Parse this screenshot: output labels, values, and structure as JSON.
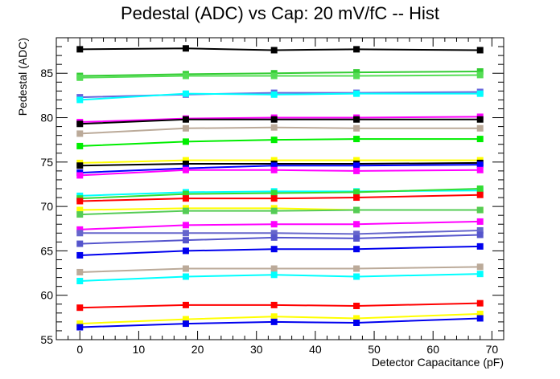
{
  "chart_data": {
    "type": "line",
    "title": "Pedestal (ADC) vs Cap: 20 mV/fC -- Hist",
    "xlabel": "Detector Capacitance (pF)",
    "ylabel": "Pedestal (ADC)",
    "xlim": [
      -4,
      72
    ],
    "ylim": [
      55,
      89
    ],
    "x_ticks": [
      0,
      10,
      20,
      30,
      40,
      50,
      60,
      70
    ],
    "y_ticks": [
      55,
      60,
      65,
      70,
      75,
      80,
      85
    ],
    "grid": false,
    "legend": "none",
    "x": [
      0,
      18,
      33,
      47,
      68
    ],
    "series": [
      {
        "color": "#000000",
        "marker": "square",
        "values": [
          87.7,
          87.8,
          87.6,
          87.7,
          87.6
        ]
      },
      {
        "color": "#33cc33",
        "marker": "square",
        "values": [
          84.7,
          84.9,
          85.0,
          85.1,
          85.2
        ]
      },
      {
        "color": "#55dd55",
        "marker": "square",
        "values": [
          84.5,
          84.7,
          84.7,
          84.7,
          84.8
        ]
      },
      {
        "color": "#6666dd",
        "marker": "square",
        "values": [
          82.3,
          82.6,
          82.8,
          82.8,
          82.9
        ]
      },
      {
        "color": "#00ffff",
        "marker": "square",
        "values": [
          82.0,
          82.7,
          82.6,
          82.7,
          82.7
        ]
      },
      {
        "color": "#ff00ff",
        "marker": "square",
        "values": [
          79.5,
          79.9,
          80.0,
          80.0,
          80.1
        ]
      },
      {
        "color": "#000000",
        "marker": "square",
        "values": [
          79.3,
          79.8,
          79.8,
          79.8,
          79.8
        ]
      },
      {
        "color": "#bbaa99",
        "marker": "square",
        "values": [
          78.2,
          78.8,
          78.9,
          78.8,
          78.8
        ]
      },
      {
        "color": "#00ee00",
        "marker": "square",
        "values": [
          76.8,
          77.3,
          77.5,
          77.6,
          77.6
        ]
      },
      {
        "color": "#ffff00",
        "marker": "square",
        "values": [
          74.9,
          75.2,
          75.2,
          75.2,
          75.2
        ]
      },
      {
        "color": "#000000",
        "marker": "square",
        "values": [
          74.6,
          74.8,
          74.8,
          74.8,
          74.9
        ]
      },
      {
        "color": "#0000ff",
        "marker": "square",
        "values": [
          73.8,
          74.3,
          74.6,
          74.6,
          74.7
        ]
      },
      {
        "color": "#ff00ff",
        "marker": "square",
        "values": [
          73.5,
          74.1,
          74.1,
          74.0,
          74.1
        ]
      },
      {
        "color": "#00ffff",
        "marker": "square",
        "values": [
          71.2,
          71.6,
          71.7,
          71.7,
          71.8
        ]
      },
      {
        "color": "#33dd33",
        "marker": "square",
        "values": [
          70.9,
          71.4,
          71.5,
          71.6,
          72.0
        ]
      },
      {
        "color": "#ff0000",
        "marker": "square",
        "values": [
          70.6,
          70.9,
          70.9,
          71.0,
          71.3
        ]
      },
      {
        "color": "#ffff00",
        "marker": "square",
        "values": [
          69.6,
          69.8,
          69.8,
          69.6,
          69.6
        ]
      },
      {
        "color": "#55cc55",
        "marker": "square",
        "values": [
          69.1,
          69.5,
          69.5,
          69.6,
          69.6
        ]
      },
      {
        "color": "#ff00ff",
        "marker": "square",
        "values": [
          67.4,
          67.9,
          68.0,
          68.0,
          68.3
        ]
      },
      {
        "color": "#6666cc",
        "marker": "square",
        "values": [
          67.0,
          67.0,
          67.0,
          66.9,
          67.3
        ]
      },
      {
        "color": "#5555cc",
        "marker": "square",
        "values": [
          65.8,
          66.2,
          66.5,
          66.4,
          66.8
        ]
      },
      {
        "color": "#0000ee",
        "marker": "square",
        "values": [
          64.5,
          65.0,
          65.2,
          65.2,
          65.5
        ]
      },
      {
        "color": "#bbaa99",
        "marker": "square",
        "values": [
          62.6,
          63.0,
          63.0,
          63.0,
          63.2
        ]
      },
      {
        "color": "#00ffff",
        "marker": "square",
        "values": [
          61.6,
          62.1,
          62.3,
          62.1,
          62.4
        ]
      },
      {
        "color": "#ff0000",
        "marker": "square",
        "values": [
          58.6,
          58.9,
          58.9,
          58.8,
          59.1
        ]
      },
      {
        "color": "#ffff00",
        "marker": "square",
        "values": [
          56.8,
          57.3,
          57.6,
          57.4,
          57.9
        ]
      },
      {
        "color": "#0000ee",
        "marker": "square",
        "values": [
          56.4,
          56.8,
          57.0,
          56.9,
          57.4
        ]
      }
    ]
  }
}
